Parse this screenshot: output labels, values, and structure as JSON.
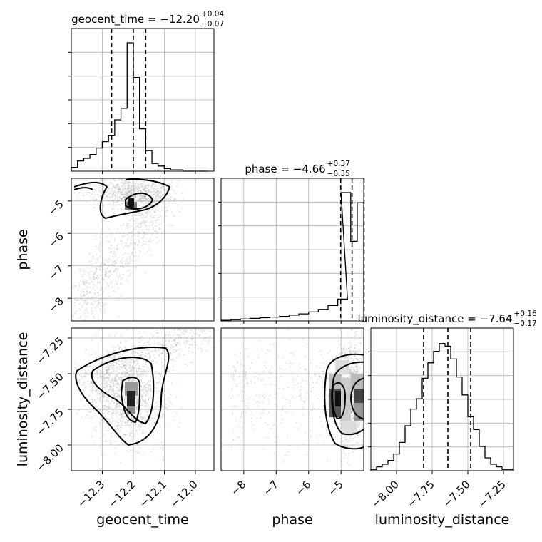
{
  "chart_data": {
    "type": "corner",
    "grid": true,
    "parameters": [
      {
        "name": "geocent_time",
        "axis_label": "geocent_time",
        "title": "geocent_time = −12.20",
        "title_plus": "+0.04",
        "title_minus": "−0.07",
        "median": -12.2,
        "plus": 0.04,
        "minus": 0.07,
        "range": [
          -12.4,
          -11.94
        ],
        "ticks": [
          -12.3,
          -12.2,
          -12.1,
          -12.0
        ],
        "tick_labels": [
          "−12.3",
          "−12.2",
          "−12.1",
          "−12.0"
        ],
        "hist_edges": [
          -12.4,
          -12.38,
          -12.36,
          -12.34,
          -12.32,
          -12.3,
          -12.28,
          -12.26,
          -12.24,
          -12.22,
          -12.2,
          -12.18,
          -12.16,
          -12.14,
          -12.12,
          -12.1,
          -12.08,
          -12.06,
          -12.04,
          -12.02,
          -12.0,
          -11.98,
          -11.96
        ],
        "hist_counts": [
          0.03,
          0.08,
          0.1,
          0.13,
          0.18,
          0.23,
          0.28,
          0.4,
          0.49,
          1.0,
          0.73,
          0.33,
          0.16,
          0.06,
          0.04,
          0.02,
          0.01,
          0.01,
          0,
          0,
          0,
          0
        ]
      },
      {
        "name": "phase",
        "axis_label": "phase",
        "title": "phase = −4.66",
        "title_plus": "+0.37",
        "title_minus": "−0.35",
        "median": -4.66,
        "plus": 0.37,
        "minus": 0.35,
        "range": [
          -8.7,
          -4.3
        ],
        "ticks": [
          -8,
          -7,
          -6,
          -5
        ],
        "tick_labels": [
          "−8",
          "−7",
          "−6",
          "−5"
        ],
        "hist_edges": [
          -8.7,
          -8.4,
          -8.1,
          -7.8,
          -7.5,
          -7.2,
          -6.9,
          -6.6,
          -6.3,
          -6.0,
          -5.7,
          -5.4,
          -5.1,
          -4.8,
          -4.6,
          -4.3
        ],
        "hist_counts": [
          0.005,
          0.01,
          0.015,
          0.02,
          0.025,
          0.03,
          0.035,
          0.045,
          0.055,
          0.07,
          0.09,
          0.12,
          0.17,
          1.0,
          0.6
        ],
        "hist_overrides": [
          [
            -5.0,
            -4.7,
            1.0
          ],
          [
            -4.7,
            -4.5,
            0.62
          ],
          [
            -4.5,
            -4.3,
            0.92
          ]
        ]
      },
      {
        "name": "luminosity_distance",
        "axis_label": "luminosity_distance",
        "title": "luminosity_distance = −7.64",
        "title_plus": "+0.16",
        "title_minus": "−0.17",
        "median": -7.64,
        "plus": 0.16,
        "minus": 0.17,
        "range": [
          -8.18,
          -7.18
        ],
        "ticks": [
          -8.0,
          -7.75,
          -7.5,
          -7.25
        ],
        "tick_labels": [
          "−8.00",
          "−7.75",
          "−7.50",
          "−7.25"
        ],
        "hist_edges": [
          -8.18,
          -8.14,
          -8.1,
          -8.06,
          -8.02,
          -7.98,
          -7.94,
          -7.9,
          -7.86,
          -7.82,
          -7.78,
          -7.74,
          -7.7,
          -7.66,
          -7.62,
          -7.58,
          -7.54,
          -7.5,
          -7.46,
          -7.42,
          -7.38,
          -7.34,
          -7.3,
          -7.26,
          -7.22,
          -7.18
        ],
        "hist_counts": [
          0.01,
          0.03,
          0.05,
          0.08,
          0.13,
          0.22,
          0.35,
          0.48,
          0.56,
          0.72,
          0.84,
          0.93,
          0.99,
          0.97,
          0.87,
          0.73,
          0.59,
          0.42,
          0.32,
          0.19,
          0.1,
          0.05,
          0.03,
          0.01,
          0.01
        ]
      }
    ]
  }
}
